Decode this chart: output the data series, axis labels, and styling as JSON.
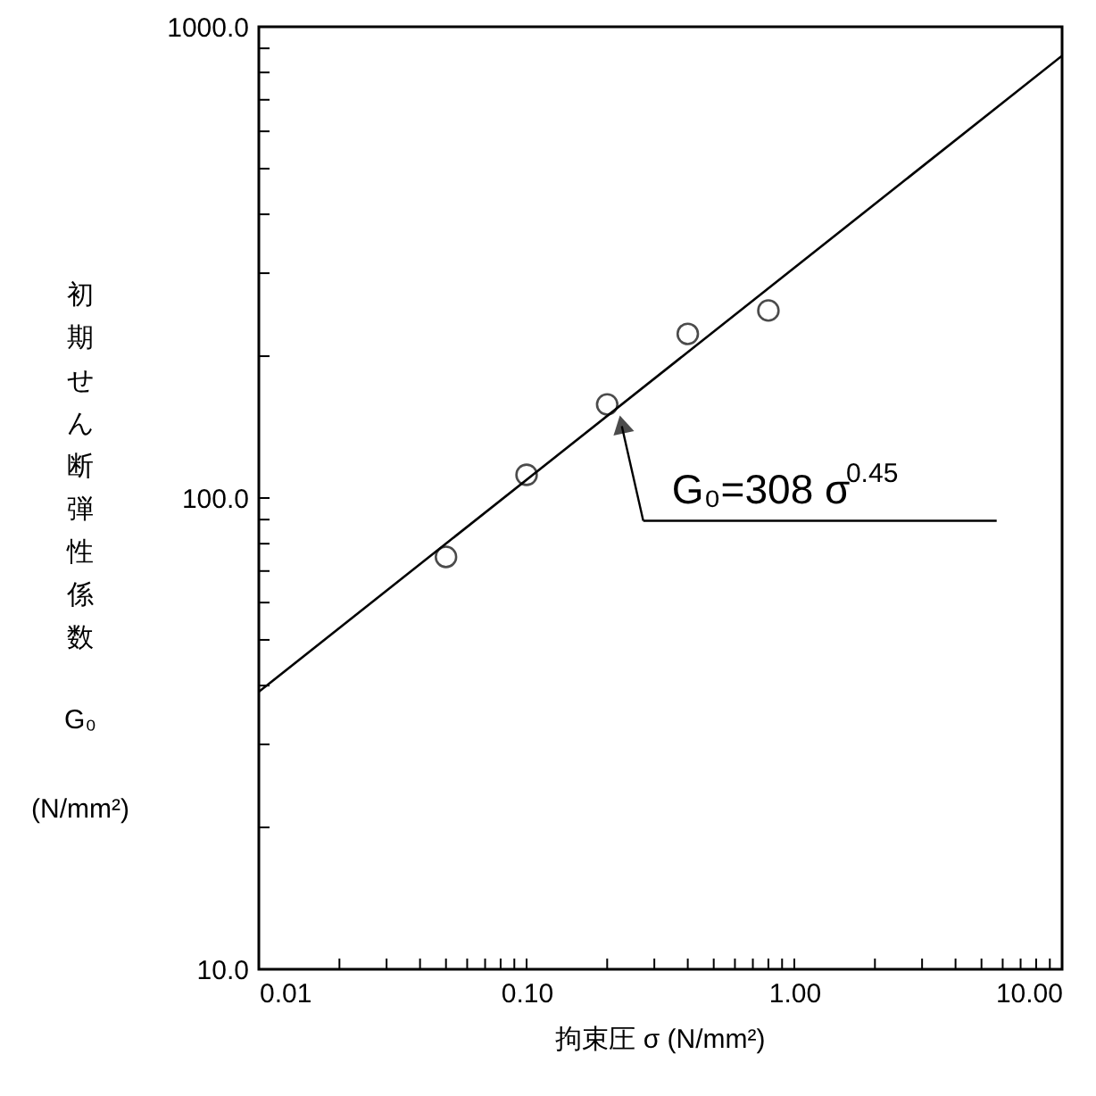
{
  "chart_data": {
    "type": "scatter",
    "xlabel": "拘束圧  σ (N/mm²)",
    "ylabel": "初期せん断弾性係数\nG₀\n(N/mm²)",
    "log": "xy",
    "grid": false,
    "xlim": [
      0.01,
      10
    ],
    "ylim": [
      10,
      1000
    ],
    "xticks": [
      0.01,
      {
        "value": 0.02,
        "label": null
      },
      {
        "value": 0.03,
        "label": null
      },
      {
        "value": 0.04,
        "label": null
      },
      {
        "value": 0.05,
        "label": null
      },
      {
        "value": 0.06,
        "label": null
      },
      {
        "value": 0.07,
        "label": null
      },
      {
        "value": 0.08,
        "label": null
      },
      {
        "value": 0.09,
        "label": null
      },
      {
        "value": 0.1,
        "label": "0.10"
      },
      {
        "value": 0.2,
        "label": null
      },
      {
        "value": 0.3,
        "label": null
      },
      {
        "value": 0.4,
        "label": null
      },
      {
        "value": 0.5,
        "label": null
      },
      {
        "value": 0.6,
        "label": null
      },
      {
        "value": 0.7,
        "label": null
      },
      {
        "value": 0.8,
        "label": null
      },
      {
        "value": 0.9,
        "label": null
      },
      {
        "value": 1,
        "label": "1.00"
      },
      {
        "value": 2,
        "label": null
      },
      {
        "value": 3,
        "label": null
      },
      {
        "value": 4,
        "label": null
      },
      {
        "value": 5,
        "label": null
      },
      {
        "value": 6,
        "label": null
      },
      {
        "value": 7,
        "label": null
      },
      {
        "value": 8,
        "label": null
      },
      {
        "value": 9,
        "label": null
      },
      {
        "value": 10,
        "label": "10.00"
      }
    ],
    "yticks": [
      {
        "value": 10,
        "label": "10.0"
      },
      {
        "value": 20,
        "label": null
      },
      {
        "value": 30,
        "label": null
      },
      {
        "value": 40,
        "label": null
      },
      {
        "value": 50,
        "label": null
      },
      {
        "value": 60,
        "label": null
      },
      {
        "value": 70,
        "label": null
      },
      {
        "value": 80,
        "label": null
      },
      {
        "value": 90,
        "label": null
      },
      {
        "value": 100,
        "label": "100.0"
      },
      {
        "value": 200,
        "label": null
      },
      {
        "value": 300,
        "label": null
      },
      {
        "value": 400,
        "label": null
      },
      {
        "value": 500,
        "label": null
      },
      {
        "value": 600,
        "label": null
      },
      {
        "value": 700,
        "label": null
      },
      {
        "value": 800,
        "label": null
      },
      {
        "value": 900,
        "label": null
      },
      {
        "value": 1000,
        "label": "1000.0"
      }
    ],
    "series": [
      {
        "marker": "circle",
        "color": "#000000",
        "x": [
          0.05,
          0.1,
          0.2,
          0.4,
          0.8
        ],
        "values": [
          75,
          112,
          158,
          223,
          250
        ]
      },
      {
        "type": "line",
        "marker": "none",
        "line_style": "solid",
        "color": "#000000",
        "x": [
          0.01,
          10
        ],
        "values": [
          38.8,
          868
        ]
      }
    ],
    "annotations": [
      {
        "text": "G₀=308 σ$^{0.45}$",
        "x": 0.22,
        "y": 155
      }
    ]
  }
}
